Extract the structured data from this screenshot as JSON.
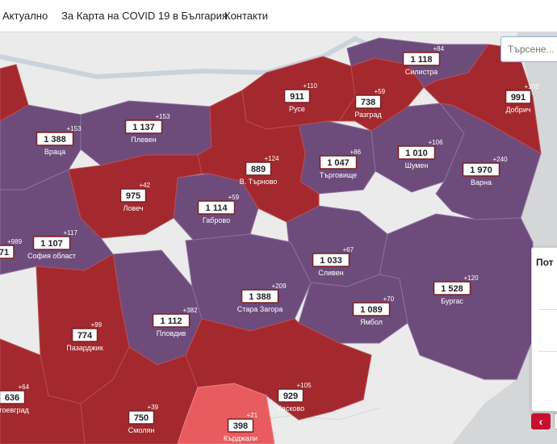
{
  "nav": {
    "items": [
      "Актуално",
      "За Карта на COVID 19 в България",
      "Контакти"
    ]
  },
  "search": {
    "placeholder": "Търсене..."
  },
  "panel": {
    "title": "Пот"
  },
  "colors": {
    "purple": "#6d4c7c",
    "red": "#a3292e",
    "light_red": "#e85b5e",
    "land": "#ebebeb",
    "sea": "#d4d6d8"
  },
  "regions": [
    {
      "name": "Враца",
      "count": "1 388",
      "inc": "+153"
    },
    {
      "name": "Плевен",
      "count": "1 137",
      "inc": "+153"
    },
    {
      "name": "Русе",
      "count": "911",
      "inc": "+110"
    },
    {
      "name": "Силистра",
      "count": "1 118",
      "inc": "+84"
    },
    {
      "name": "Разград",
      "count": "738",
      "inc": "+59"
    },
    {
      "name": "Добрич",
      "count": "991",
      "inc": "+102"
    },
    {
      "name": "Ловеч",
      "count": "975",
      "inc": "+42"
    },
    {
      "name": "В. Търново",
      "count": "889",
      "inc": "+124"
    },
    {
      "name": "Търговище",
      "count": "1 047",
      "inc": "+86"
    },
    {
      "name": "Шумен",
      "count": "1 010",
      "inc": "+106"
    },
    {
      "name": "Варна",
      "count": "1 970",
      "inc": "+240"
    },
    {
      "name": "Габрово",
      "count": "1 114",
      "inc": "+59"
    },
    {
      "name": "София област",
      "count": "1 107",
      "inc": "+117"
    },
    {
      "name": "",
      "count": "71",
      "inc": "+989"
    },
    {
      "name": "Сливен",
      "count": "1 033",
      "inc": "+67"
    },
    {
      "name": "Стара Загора",
      "count": "1 388",
      "inc": "+209"
    },
    {
      "name": "Бургас",
      "count": "1 528",
      "inc": "+120"
    },
    {
      "name": "Пловдив",
      "count": "1 112",
      "inc": "+382"
    },
    {
      "name": "Пазарджик",
      "count": "774",
      "inc": "+99"
    },
    {
      "name": "Ямбол",
      "count": "1 089",
      "inc": "+70"
    },
    {
      "name": "агоевград",
      "count": "636",
      "inc": "+64"
    },
    {
      "name": "Смолян",
      "count": "750",
      "inc": "+39"
    },
    {
      "name": "Хасково",
      "count": "929",
      "inc": "+105"
    },
    {
      "name": "Кърджали",
      "count": "398",
      "inc": "+21"
    }
  ]
}
